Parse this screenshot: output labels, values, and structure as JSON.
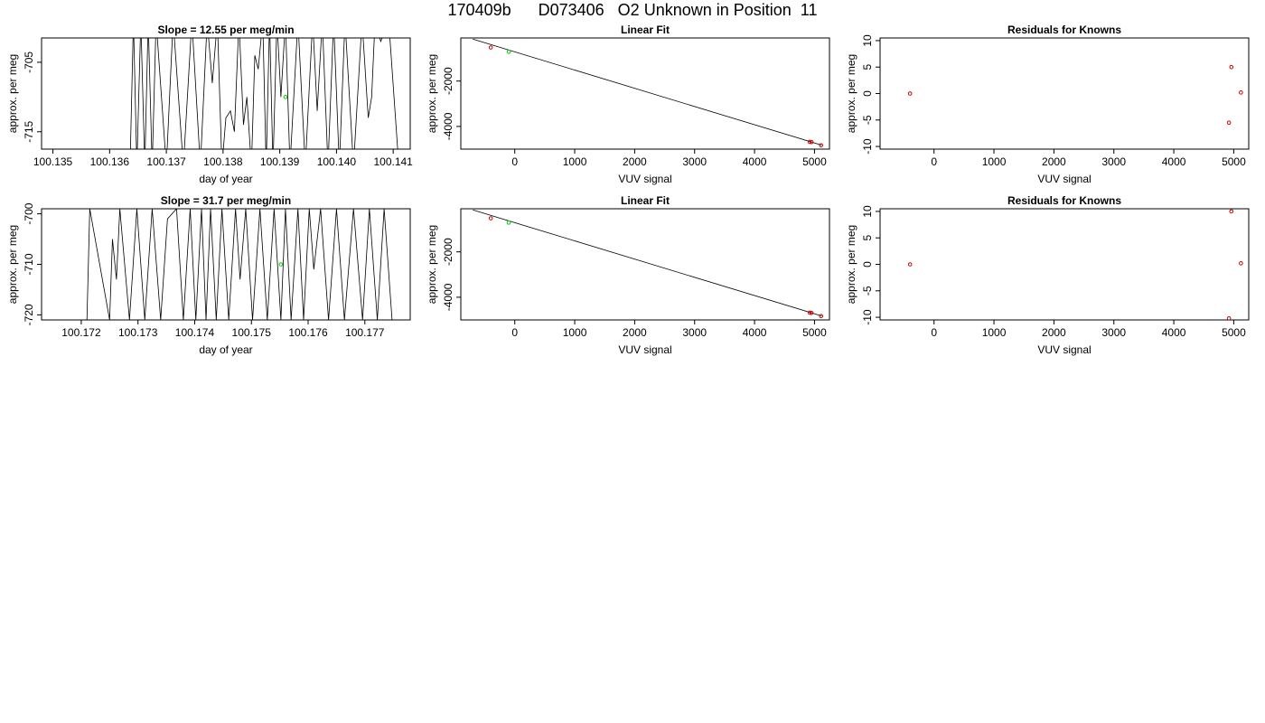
{
  "page": {
    "title": "170409b      D073406   O2 Unknown in Position  11"
  },
  "chart_data": [
    {
      "type": "line",
      "title": "Slope =  12.55  per meg/min",
      "xlabel": "day of year",
      "ylabel": "approx. per meg",
      "xlim": [
        100.1348,
        100.1413
      ],
      "ylim": [
        -717.5,
        -701.5
      ],
      "xticks": [
        "100.135",
        "100.136",
        "100.137",
        "100.138",
        "100.139",
        "100.140",
        "100.141"
      ],
      "yticks": [
        "-705",
        "-715"
      ],
      "series": [
        {
          "x": [
            100.13636,
            100.13642,
            100.13648,
            100.13655,
            100.13662,
            100.13668,
            100.13675,
            100.13682,
            100.137,
            100.13712,
            100.1373,
            100.13745,
            100.1376,
            100.13772,
            100.13781,
            100.1379,
            100.13798,
            100.13805,
            100.13813,
            100.1382,
            100.13828,
            100.13836,
            100.13842,
            100.1385,
            100.13856,
            100.13862,
            100.1387,
            100.13876,
            100.13882,
            100.13888,
            100.13895,
            100.13902,
            100.1391,
            100.13918,
            100.13932,
            100.13945,
            100.13958,
            100.13966,
            100.13975,
            100.13985,
            100.13995,
            100.14005,
            100.14015,
            100.1403,
            100.14045,
            100.14056,
            100.14062,
            100.14068,
            100.14078,
            100.14092,
            100.1411
          ],
          "y": [
            -720,
            -699,
            -720,
            -699,
            -720,
            -699,
            -720,
            -699,
            -720,
            -699,
            -720,
            -699,
            -720,
            -699,
            -708,
            -699,
            -720,
            -713,
            -712,
            -715,
            -699,
            -714,
            -710,
            -720,
            -704,
            -706,
            -699,
            -720,
            -699,
            -720,
            -699,
            -710,
            -699,
            -720,
            -699,
            -720,
            -699,
            -712,
            -699,
            -720,
            -699,
            -720,
            -699,
            -720,
            -699,
            -713,
            -710,
            -699,
            -702,
            -699,
            -720
          ]
        }
      ],
      "highlight_point": {
        "x": 100.1391,
        "y": -710,
        "color": "#00cc00"
      }
    },
    {
      "type": "scatter",
      "title": "Linear Fit",
      "xlabel": "VUV signal",
      "ylabel": "approx. per meg",
      "xlim": [
        -900,
        5250
      ],
      "ylim": [
        -5000,
        -100
      ],
      "xticks": [
        "0",
        "1000",
        "2000",
        "3000",
        "4000",
        "5000"
      ],
      "yticks": [
        "-2000",
        "-4000"
      ],
      "fit_line": {
        "x": [
          -700,
          5120
        ],
        "y": [
          -150,
          -4825
        ]
      },
      "points_known": {
        "x": [
          -400,
          4920,
          4950,
          5110
        ],
        "y": [
          -520,
          -4680,
          -4690,
          -4830
        ],
        "color": "#cc0000"
      },
      "points_unknown": {
        "x": [
          -100
        ],
        "y": [
          -710
        ],
        "color": "#00cc00"
      }
    },
    {
      "type": "scatter",
      "title": "Residuals for Knowns",
      "xlabel": "VUV signal",
      "ylabel": "approx. per meg",
      "xlim": [
        -900,
        5250
      ],
      "ylim": [
        -10.5,
        10.5
      ],
      "xticks": [
        "0",
        "1000",
        "2000",
        "3000",
        "4000",
        "5000"
      ],
      "yticks": [
        "-10",
        "-5",
        "0",
        "5",
        "10"
      ],
      "points": {
        "x": [
          -400,
          4960,
          5120,
          4920
        ],
        "y": [
          0,
          5,
          0.2,
          -5.5
        ],
        "color": "#cc0000"
      }
    },
    {
      "type": "line",
      "title": "Slope =  31.7  per meg/min",
      "xlabel": "day of year",
      "ylabel": "approx. per meg",
      "xlim": [
        100.1713,
        100.1778
      ],
      "ylim": [
        -721,
        -699
      ],
      "xticks": [
        "100.172",
        "100.173",
        "100.174",
        "100.175",
        "100.176",
        "100.177"
      ],
      "yticks": [
        "-700",
        "-710",
        "-720"
      ],
      "series": [
        {
          "x": [
            100.1721,
            100.17215,
            100.1725,
            100.17255,
            100.17262,
            100.17268,
            100.17285,
            100.17298,
            100.17312,
            100.17325,
            100.1734,
            100.17352,
            100.17368,
            100.1738,
            100.17392,
            100.17402,
            100.17412,
            100.1742,
            100.17428,
            100.17438,
            100.17448,
            100.1746,
            100.17472,
            100.1748,
            100.1749,
            100.17502,
            100.17515,
            100.17528,
            100.1754,
            100.17552,
            100.1756,
            100.1757,
            100.17582,
            100.17592,
            100.17602,
            100.1761,
            100.17622,
            100.17636,
            100.1765,
            100.17664,
            100.1768,
            100.17696,
            100.17708,
            100.17722,
            100.17734,
            100.17748
          ],
          "y": [
            -721,
            -699,
            -721,
            -705,
            -713,
            -699,
            -721,
            -699,
            -721,
            -699,
            -721,
            -701,
            -699,
            -721,
            -699,
            -721,
            -699,
            -721,
            -699,
            -721,
            -699,
            -721,
            -699,
            -713,
            -699,
            -721,
            -699,
            -721,
            -699,
            -721,
            -699,
            -721,
            -699,
            -721,
            -699,
            -711,
            -699,
            -721,
            -699,
            -721,
            -699,
            -721,
            -699,
            -721,
            -699,
            -721
          ]
        }
      ],
      "highlight_point": {
        "x": 100.17552,
        "y": -710,
        "color": "#00cc00"
      }
    },
    {
      "type": "scatter",
      "title": "Linear Fit",
      "xlabel": "VUV signal",
      "ylabel": "approx. per meg",
      "xlim": [
        -900,
        5250
      ],
      "ylim": [
        -5000,
        -100
      ],
      "xticks": [
        "0",
        "1000",
        "2000",
        "3000",
        "4000",
        "5000"
      ],
      "yticks": [
        "-2000",
        "-4000"
      ],
      "fit_line": {
        "x": [
          -700,
          5120
        ],
        "y": [
          -150,
          -4825
        ]
      },
      "points_known": {
        "x": [
          -400,
          4920,
          4950,
          5110
        ],
        "y": [
          -520,
          -4680,
          -4690,
          -4830
        ],
        "color": "#cc0000"
      },
      "points_unknown": {
        "x": [
          -100
        ],
        "y": [
          -710
        ],
        "color": "#00cc00"
      }
    },
    {
      "type": "scatter",
      "title": "Residuals for Knowns",
      "xlabel": "VUV signal",
      "ylabel": "approx. per meg",
      "xlim": [
        -900,
        5250
      ],
      "ylim": [
        -10.5,
        10.5
      ],
      "xticks": [
        "0",
        "1000",
        "2000",
        "3000",
        "4000",
        "5000"
      ],
      "yticks": [
        "-10",
        "-5",
        "0",
        "5",
        "10"
      ],
      "points": {
        "x": [
          -400,
          4960,
          5120,
          4920
        ],
        "y": [
          0,
          10,
          0.2,
          -10.2
        ],
        "color": "#cc0000"
      }
    }
  ]
}
